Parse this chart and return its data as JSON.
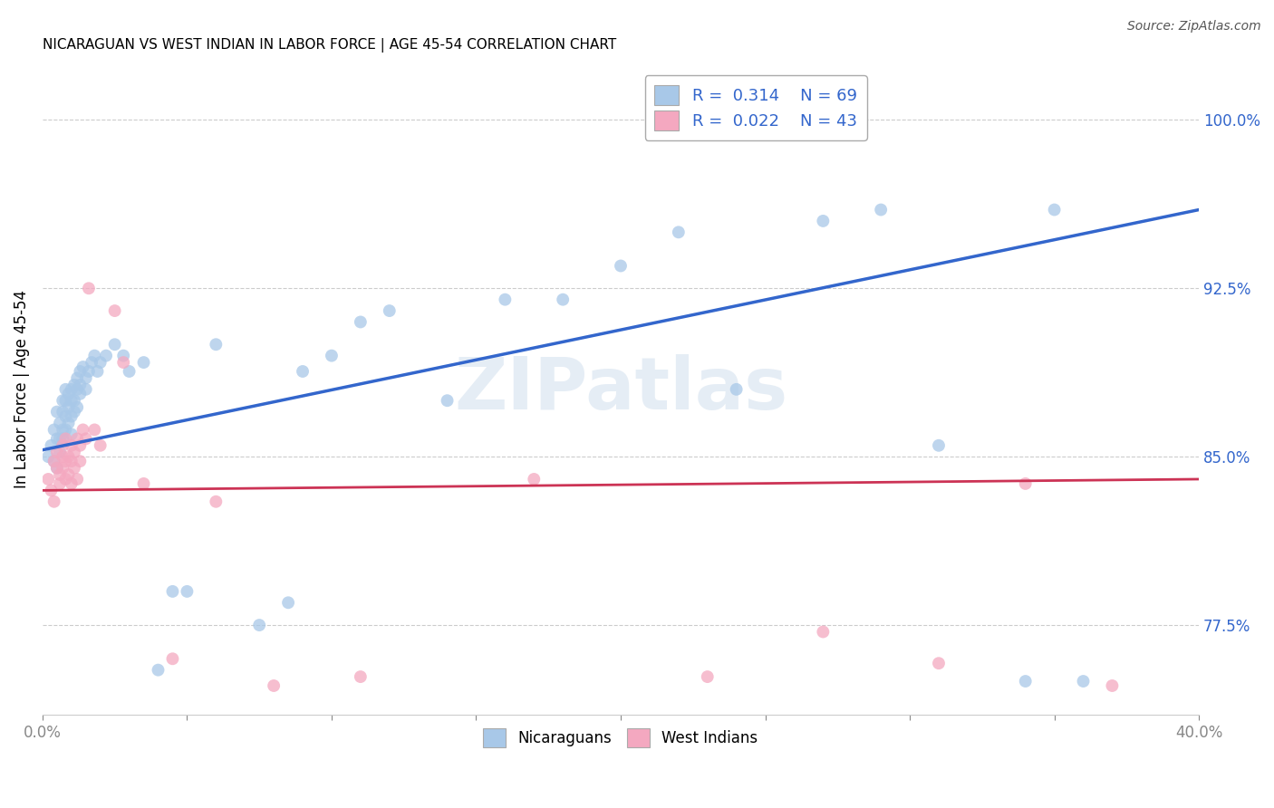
{
  "title": "NICARAGUAN VS WEST INDIAN IN LABOR FORCE | AGE 45-54 CORRELATION CHART",
  "source": "Source: ZipAtlas.com",
  "ylabel": "In Labor Force | Age 45-54",
  "xlim": [
    0.0,
    0.4
  ],
  "ylim": [
    0.735,
    1.025
  ],
  "xticks": [
    0.0,
    0.05,
    0.1,
    0.15,
    0.2,
    0.25,
    0.3,
    0.35,
    0.4
  ],
  "xticklabels": [
    "0.0%",
    "",
    "",
    "",
    "",
    "",
    "",
    "",
    "40.0%"
  ],
  "yticks_right": [
    0.775,
    0.85,
    0.925,
    1.0
  ],
  "yticklabels_right": [
    "77.5%",
    "85.0%",
    "92.5%",
    "100.0%"
  ],
  "watermark": "ZIPatlas",
  "blue_R": "0.314",
  "blue_N": "69",
  "pink_R": "0.022",
  "pink_N": "43",
  "blue_color": "#a8c8e8",
  "pink_color": "#f4a8c0",
  "blue_line_color": "#3366cc",
  "pink_line_color": "#cc3355",
  "legend_label_blue": "Nicaraguans",
  "legend_label_pink": "West Indians",
  "blue_scatter_x": [
    0.002,
    0.003,
    0.004,
    0.004,
    0.005,
    0.005,
    0.005,
    0.006,
    0.006,
    0.006,
    0.007,
    0.007,
    0.007,
    0.007,
    0.008,
    0.008,
    0.008,
    0.008,
    0.009,
    0.009,
    0.009,
    0.01,
    0.01,
    0.01,
    0.01,
    0.011,
    0.011,
    0.011,
    0.012,
    0.012,
    0.012,
    0.013,
    0.013,
    0.013,
    0.014,
    0.015,
    0.015,
    0.016,
    0.017,
    0.018,
    0.019,
    0.02,
    0.022,
    0.025,
    0.028,
    0.03,
    0.035,
    0.04,
    0.045,
    0.05,
    0.06,
    0.075,
    0.085,
    0.1,
    0.11,
    0.12,
    0.14,
    0.16,
    0.18,
    0.2,
    0.22,
    0.24,
    0.27,
    0.29,
    0.31,
    0.34,
    0.35,
    0.36,
    0.09
  ],
  "blue_scatter_y": [
    0.85,
    0.855,
    0.848,
    0.862,
    0.87,
    0.858,
    0.845,
    0.865,
    0.858,
    0.852,
    0.87,
    0.875,
    0.862,
    0.858,
    0.875,
    0.88,
    0.868,
    0.862,
    0.878,
    0.872,
    0.865,
    0.88,
    0.875,
    0.868,
    0.86,
    0.882,
    0.875,
    0.87,
    0.885,
    0.88,
    0.872,
    0.888,
    0.882,
    0.878,
    0.89,
    0.885,
    0.88,
    0.888,
    0.892,
    0.895,
    0.888,
    0.892,
    0.895,
    0.9,
    0.895,
    0.888,
    0.892,
    0.755,
    0.79,
    0.79,
    0.9,
    0.775,
    0.785,
    0.895,
    0.91,
    0.915,
    0.875,
    0.92,
    0.92,
    0.935,
    0.95,
    0.88,
    0.955,
    0.96,
    0.855,
    0.75,
    0.96,
    0.75,
    0.888
  ],
  "pink_scatter_x": [
    0.002,
    0.003,
    0.004,
    0.004,
    0.005,
    0.005,
    0.006,
    0.006,
    0.007,
    0.007,
    0.007,
    0.008,
    0.008,
    0.008,
    0.009,
    0.009,
    0.01,
    0.01,
    0.01,
    0.011,
    0.011,
    0.012,
    0.012,
    0.013,
    0.013,
    0.014,
    0.015,
    0.016,
    0.018,
    0.02,
    0.025,
    0.028,
    0.035,
    0.045,
    0.06,
    0.08,
    0.11,
    0.17,
    0.23,
    0.27,
    0.31,
    0.34,
    0.37
  ],
  "pink_scatter_y": [
    0.84,
    0.835,
    0.848,
    0.83,
    0.845,
    0.852,
    0.842,
    0.838,
    0.85,
    0.845,
    0.855,
    0.848,
    0.84,
    0.858,
    0.842,
    0.85,
    0.855,
    0.848,
    0.838,
    0.852,
    0.845,
    0.858,
    0.84,
    0.855,
    0.848,
    0.862,
    0.858,
    0.925,
    0.862,
    0.855,
    0.915,
    0.892,
    0.838,
    0.76,
    0.83,
    0.748,
    0.752,
    0.84,
    0.752,
    0.772,
    0.758,
    0.838,
    0.748
  ],
  "blue_line_x0": 0.0,
  "blue_line_x1": 0.4,
  "blue_line_y0": 0.853,
  "blue_line_y1": 0.96,
  "pink_line_x0": 0.0,
  "pink_line_x1": 0.4,
  "pink_line_y0": 0.835,
  "pink_line_y1": 0.84,
  "background_color": "#ffffff",
  "grid_color": "#cccccc",
  "title_color": "#000000",
  "axis_label_color": "#000000",
  "right_tick_color": "#3366cc"
}
